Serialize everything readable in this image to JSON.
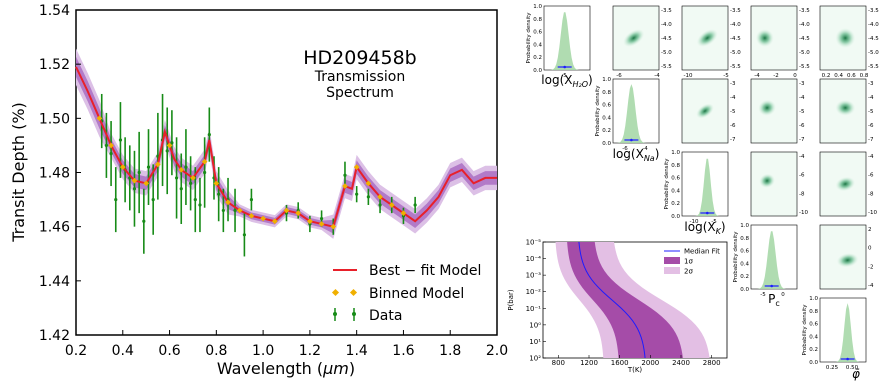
{
  "chart_data": [
    {
      "type": "line",
      "title": "HD209458b",
      "subtitle_line1": "Transmission",
      "subtitle_line2": "Spectrum",
      "xlabel": "Wavelength (",
      "xlabel_unit": "μm",
      "xlabel_close": ")",
      "ylabel": "Transit Depth (%)",
      "xlim": [
        0.2,
        2.0
      ],
      "ylim": [
        1.42,
        1.54
      ],
      "xticks": [
        "0.2",
        "0.4",
        "0.6",
        "0.8",
        "1.0",
        "1.2",
        "1.4",
        "1.6",
        "1.8",
        "2.0"
      ],
      "yticks": [
        "1.42",
        "1.44",
        "1.46",
        "1.48",
        "1.50",
        "1.52",
        "1.54"
      ],
      "legend": [
        "Best − fit Model",
        "Binned Model",
        "Data"
      ],
      "legend_position": "lower-right",
      "colors": {
        "model": "#e8202a",
        "binned": "#f0b000",
        "data": "#178b17",
        "band_inner": "#a868c0",
        "band_outer": "#dcc0e6"
      },
      "model": {
        "x": [
          0.2,
          0.25,
          0.3,
          0.35,
          0.4,
          0.45,
          0.5,
          0.55,
          0.58,
          0.6,
          0.62,
          0.65,
          0.7,
          0.75,
          0.77,
          0.8,
          0.85,
          0.9,
          0.95,
          1.0,
          1.05,
          1.1,
          1.15,
          1.2,
          1.25,
          1.3,
          1.35,
          1.38,
          1.4,
          1.45,
          1.5,
          1.55,
          1.6,
          1.65,
          1.7,
          1.75,
          1.8,
          1.85,
          1.9,
          1.95,
          2.0
        ],
        "y": [
          1.519,
          1.51,
          1.5,
          1.49,
          1.482,
          1.477,
          1.476,
          1.483,
          1.495,
          1.49,
          1.485,
          1.481,
          1.478,
          1.484,
          1.492,
          1.476,
          1.469,
          1.466,
          1.464,
          1.463,
          1.462,
          1.466,
          1.465,
          1.462,
          1.461,
          1.46,
          1.475,
          1.474,
          1.482,
          1.476,
          1.471,
          1.468,
          1.465,
          1.462,
          1.466,
          1.471,
          1.479,
          1.481,
          1.476,
          1.478,
          1.478
        ]
      },
      "data": {
        "x": [
          0.31,
          0.33,
          0.35,
          0.37,
          0.39,
          0.41,
          0.43,
          0.45,
          0.47,
          0.49,
          0.51,
          0.53,
          0.55,
          0.57,
          0.59,
          0.61,
          0.63,
          0.65,
          0.67,
          0.69,
          0.71,
          0.73,
          0.75,
          0.77,
          0.79,
          0.81,
          0.83,
          0.85,
          0.88,
          0.92,
          0.95,
          1.1,
          1.15,
          1.2,
          1.25,
          1.3,
          1.35,
          1.4,
          1.45,
          1.5,
          1.55,
          1.6,
          1.65
        ],
        "y": [
          1.499,
          1.49,
          1.487,
          1.47,
          1.492,
          1.481,
          1.478,
          1.474,
          1.48,
          1.462,
          1.482,
          1.47,
          1.486,
          1.492,
          1.488,
          1.491,
          1.478,
          1.474,
          1.482,
          1.476,
          1.47,
          1.468,
          1.48,
          1.494,
          1.478,
          1.472,
          1.466,
          1.47,
          1.466,
          1.457,
          1.47,
          1.465,
          1.466,
          1.461,
          1.463,
          1.46,
          1.479,
          1.472,
          1.471,
          1.468,
          1.468,
          1.464,
          1.468
        ],
        "err": [
          0.01,
          0.012,
          0.012,
          0.012,
          0.014,
          0.012,
          0.012,
          0.014,
          0.015,
          0.012,
          0.014,
          0.013,
          0.016,
          0.017,
          0.016,
          0.012,
          0.015,
          0.013,
          0.014,
          0.01,
          0.012,
          0.01,
          0.013,
          0.01,
          0.008,
          0.01,
          0.008,
          0.008,
          0.008,
          0.008,
          0.004,
          0.003,
          0.003,
          0.003,
          0.003,
          0.003,
          0.005,
          0.003,
          0.003,
          0.003,
          0.003,
          0.003,
          0.003
        ]
      },
      "binned": {
        "x": [
          0.3,
          0.35,
          0.4,
          0.45,
          0.5,
          0.55,
          0.6,
          0.65,
          0.7,
          0.75,
          0.8,
          0.85,
          0.9,
          0.95,
          1.0,
          1.05,
          1.1,
          1.15,
          1.2,
          1.25,
          1.3,
          1.35,
          1.4,
          1.45,
          1.5,
          1.55,
          1.6
        ],
        "y": [
          1.5,
          1.49,
          1.482,
          1.477,
          1.476,
          1.483,
          1.49,
          1.481,
          1.478,
          1.484,
          1.476,
          1.469,
          1.466,
          1.464,
          1.463,
          1.462,
          1.466,
          1.465,
          1.462,
          1.461,
          1.46,
          1.475,
          1.482,
          1.476,
          1.471,
          1.468,
          1.465
        ]
      }
    },
    {
      "type": "heatmap",
      "corner_labels": [
        "log(X",
        "H₂O",
        ")",
        "log(X",
        "Na",
        ")",
        "log(X",
        "K",
        ")",
        "P",
        "c",
        "φ̄"
      ],
      "ylabel": "Probability density",
      "row1_ticks": [
        "-5",
        "-6",
        "-4",
        "-10",
        "-8",
        "-6",
        "-4",
        "-2",
        "0",
        "0.2",
        "0.4",
        "0.6",
        "0.8"
      ],
      "row1_yticks": [
        "-3.5",
        "-4.0",
        "-4.5",
        "-5.0",
        "-5.5"
      ],
      "row2_yticks": [
        "-3",
        "-4",
        "-5",
        "-6",
        "-7"
      ],
      "row3_yticks": [
        "-4",
        "-6",
        "-8",
        "-10"
      ],
      "row4_yticks": [
        "2",
        "0",
        "-2",
        "-4"
      ],
      "diag_yticks": [
        "1.0",
        "0.8",
        "0.6",
        "0.4",
        "0.2",
        "0.0"
      ],
      "x_row2": [
        "-6",
        "-4"
      ],
      "x_row3": [
        "-10",
        "-5"
      ],
      "x_row4": [
        "-5",
        "0"
      ],
      "x_row5": [
        "0.25",
        "0.50"
      ]
    },
    {
      "type": "area",
      "xlabel": "T(K)",
      "ylabel": "P(bar)",
      "xticks": [
        "800",
        "1200",
        "1600",
        "2000",
        "2400",
        "2800"
      ],
      "yticks": [
        "10⁻⁵",
        "10⁻⁴",
        "10⁻³",
        "10⁻²",
        "10⁻¹",
        "10⁰",
        "10¹",
        "10²"
      ],
      "legend": [
        "Median Fit",
        "1σ",
        "2σ"
      ],
      "colors": {
        "median": "#1c1cff",
        "one_sigma": "#a54ca8",
        "two_sigma": "#e3bfe4"
      }
    }
  ]
}
